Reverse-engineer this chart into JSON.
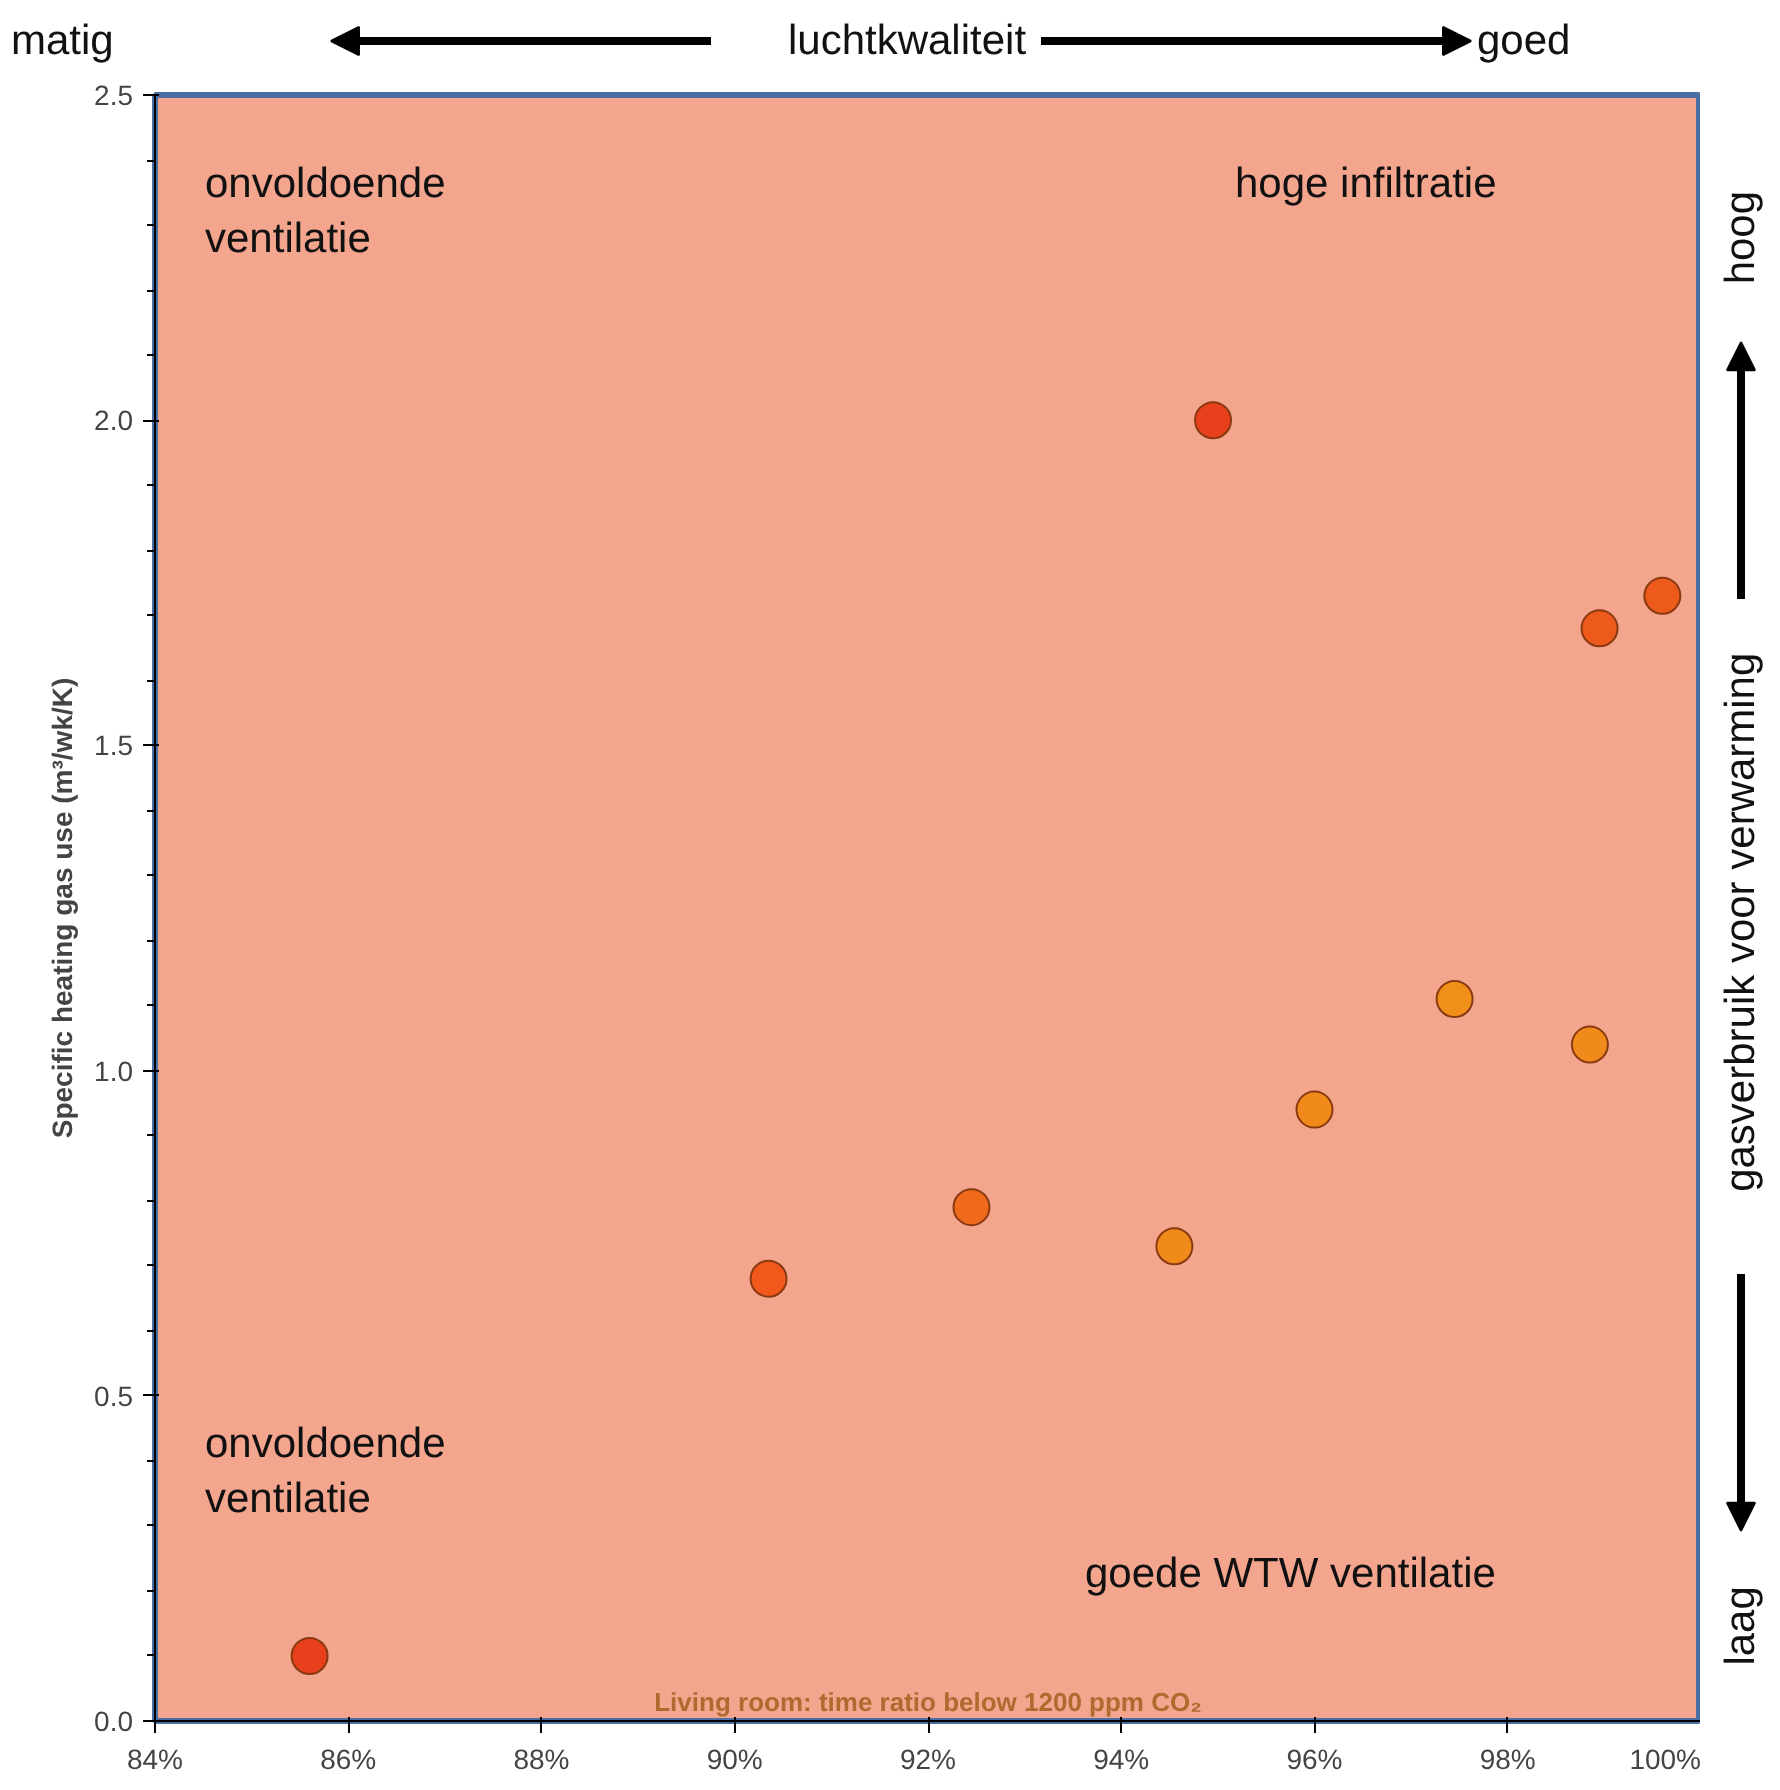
{
  "chart_data": {
    "type": "scatter",
    "ylabel": "Specific heating gas use (m³/wk/K)",
    "xlabel": "Living room: time ratio below 1200 ppm CO₂",
    "x": [
      85.6,
      90.35,
      92.45,
      94.55,
      94.95,
      96.0,
      97.45,
      98.85,
      98.95,
      99.6
    ],
    "series": [
      {
        "values": [
          0.1,
          0.68,
          0.79,
          0.73,
          2.0,
          0.94,
          1.11,
          1.04,
          1.68,
          1.73
        ],
        "colors": [
          "#e8401c",
          "#f0581c",
          "#f06a1c",
          "#f08a1a",
          "#e8401c",
          "#f08a1a",
          "#f0901a",
          "#f08a1a",
          "#ee5a1c",
          "#ee5a1c"
        ]
      }
    ],
    "xlim": [
      84,
      100
    ],
    "xticks": [
      {
        "value": 84,
        "label": "84%"
      },
      {
        "value": 86,
        "label": "86%"
      },
      {
        "value": 88,
        "label": "88%"
      },
      {
        "value": 90,
        "label": "90%"
      },
      {
        "value": 92,
        "label": "92%"
      },
      {
        "value": 94,
        "label": "94%"
      },
      {
        "value": 96,
        "label": "96%"
      },
      {
        "value": 98,
        "label": "98%"
      },
      {
        "value": 100,
        "label": "100%"
      }
    ],
    "ylim": [
      0,
      2.5
    ],
    "yticks": [
      {
        "value": 0,
        "label": "0.0"
      },
      {
        "value": 0.5,
        "label": "0.5"
      },
      {
        "value": 1,
        "label": "1.0"
      },
      {
        "value": 1.5,
        "label": "1.5"
      },
      {
        "value": 2,
        "label": "2.0"
      },
      {
        "value": 2.5,
        "label": "2.5"
      }
    ],
    "marker": "circle",
    "grid": false,
    "annotations": [
      "onvoldoende\nventilatie",
      "hoge infiltratie",
      "onvoldoende\nventilatie",
      "goede WTW ventilatie",
      "matig",
      "luchtkwaliteit",
      "goed",
      "hoog",
      "gasverbruik voor verwarming",
      "laag"
    ]
  }
}
